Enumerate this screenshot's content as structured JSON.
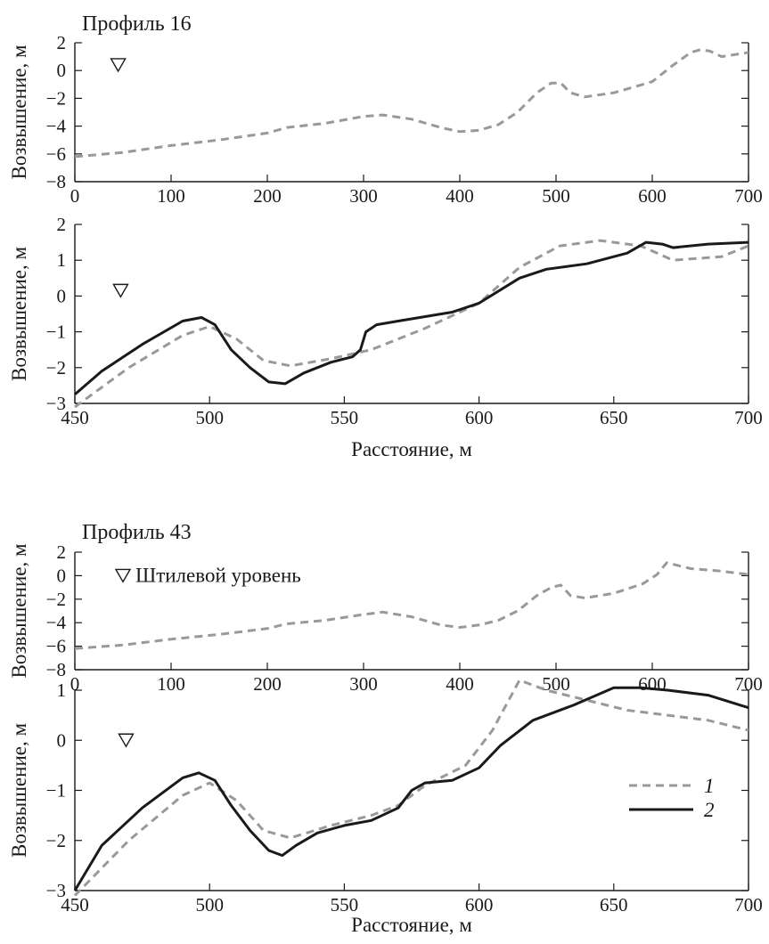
{
  "chart_data": [
    {
      "type": "line",
      "title": "Профиль 16",
      "xlabel": "",
      "ylabel": "Возвышение, м",
      "xlim": [
        0,
        700
      ],
      "ylim": [
        -8,
        2
      ],
      "xticks": [
        0,
        100,
        200,
        300,
        400,
        500,
        600,
        700
      ],
      "yticks": [
        -8,
        -6,
        -4,
        -2,
        0,
        2
      ],
      "annotation": {
        "text": "",
        "marker": "still-water-triangle",
        "x": 45,
        "y": 0.4
      },
      "series": [
        {
          "name": "",
          "style": "dashed",
          "color": "#999999",
          "points": [
            [
              0,
              -6.2
            ],
            [
              50,
              -5.9
            ],
            [
              100,
              -5.4
            ],
            [
              150,
              -5.0
            ],
            [
              200,
              -4.5
            ],
            [
              220,
              -4.1
            ],
            [
              260,
              -3.8
            ],
            [
              300,
              -3.3
            ],
            [
              320,
              -3.2
            ],
            [
              350,
              -3.5
            ],
            [
              380,
              -4.1
            ],
            [
              400,
              -4.4
            ],
            [
              420,
              -4.3
            ],
            [
              440,
              -3.9
            ],
            [
              460,
              -3.0
            ],
            [
              480,
              -1.6
            ],
            [
              495,
              -0.9
            ],
            [
              505,
              -0.9
            ],
            [
              515,
              -1.6
            ],
            [
              530,
              -1.9
            ],
            [
              560,
              -1.6
            ],
            [
              600,
              -0.8
            ],
            [
              620,
              0.3
            ],
            [
              640,
              1.3
            ],
            [
              650,
              1.5
            ],
            [
              660,
              1.4
            ],
            [
              672,
              1.0
            ],
            [
              700,
              1.3
            ]
          ]
        }
      ]
    },
    {
      "type": "line",
      "title": "",
      "xlabel": "Расстояние, м",
      "ylabel": "Возвышение, м",
      "xlim": [
        450,
        700
      ],
      "ylim": [
        -3,
        2
      ],
      "xticks": [
        450,
        500,
        550,
        600,
        650,
        700
      ],
      "yticks": [
        -3,
        -2,
        -1,
        0,
        1,
        2
      ],
      "annotation": {
        "text": "",
        "marker": "still-water-triangle",
        "x": 467,
        "y": 0.15
      },
      "series": [
        {
          "name": "1",
          "style": "dashed",
          "color": "#999999",
          "points": [
            [
              450,
              -3.1
            ],
            [
              470,
              -2.0
            ],
            [
              490,
              -1.1
            ],
            [
              500,
              -0.85
            ],
            [
              510,
              -1.2
            ],
            [
              520,
              -1.8
            ],
            [
              530,
              -1.95
            ],
            [
              545,
              -1.75
            ],
            [
              560,
              -1.5
            ],
            [
              580,
              -0.9
            ],
            [
              600,
              -0.2
            ],
            [
              615,
              0.8
            ],
            [
              630,
              1.4
            ],
            [
              645,
              1.55
            ],
            [
              660,
              1.4
            ],
            [
              672,
              1.0
            ],
            [
              690,
              1.1
            ],
            [
              700,
              1.4
            ]
          ]
        },
        {
          "name": "2",
          "style": "solid",
          "color": "#1a1a1a",
          "points": [
            [
              450,
              -2.75
            ],
            [
              460,
              -2.1
            ],
            [
              475,
              -1.35
            ],
            [
              490,
              -0.7
            ],
            [
              497,
              -0.6
            ],
            [
              502,
              -0.8
            ],
            [
              508,
              -1.5
            ],
            [
              515,
              -2.0
            ],
            [
              522,
              -2.4
            ],
            [
              528,
              -2.45
            ],
            [
              535,
              -2.15
            ],
            [
              545,
              -1.85
            ],
            [
              553,
              -1.7
            ],
            [
              556,
              -1.5
            ],
            [
              558,
              -1.0
            ],
            [
              562,
              -0.8
            ],
            [
              570,
              -0.7
            ],
            [
              590,
              -0.45
            ],
            [
              600,
              -0.2
            ],
            [
              615,
              0.5
            ],
            [
              625,
              0.75
            ],
            [
              640,
              0.9
            ],
            [
              655,
              1.2
            ],
            [
              662,
              1.5
            ],
            [
              668,
              1.45
            ],
            [
              672,
              1.35
            ],
            [
              685,
              1.45
            ],
            [
              700,
              1.5
            ]
          ]
        }
      ]
    },
    {
      "type": "line",
      "title": "Профиль 43",
      "xlabel": "",
      "ylabel": "Возвышение, м",
      "xlim": [
        0,
        700
      ],
      "ylim": [
        -8,
        2
      ],
      "xticks": [
        0,
        100,
        200,
        300,
        400,
        500,
        600,
        700
      ],
      "yticks": [
        -8,
        -6,
        -4,
        -2,
        0,
        2
      ],
      "annotation": {
        "text": "Штилевой уровень",
        "marker": "still-water-triangle",
        "x": 50,
        "y": 0
      },
      "series": [
        {
          "name": "",
          "style": "dashed",
          "color": "#999999",
          "points": [
            [
              0,
              -6.2
            ],
            [
              50,
              -5.9
            ],
            [
              100,
              -5.4
            ],
            [
              150,
              -5.0
            ],
            [
              200,
              -4.5
            ],
            [
              220,
              -4.1
            ],
            [
              260,
              -3.8
            ],
            [
              300,
              -3.3
            ],
            [
              320,
              -3.1
            ],
            [
              350,
              -3.5
            ],
            [
              380,
              -4.2
            ],
            [
              400,
              -4.4
            ],
            [
              420,
              -4.2
            ],
            [
              440,
              -3.8
            ],
            [
              460,
              -3.0
            ],
            [
              480,
              -1.7
            ],
            [
              495,
              -1.0
            ],
            [
              505,
              -0.8
            ],
            [
              515,
              -1.7
            ],
            [
              530,
              -1.9
            ],
            [
              560,
              -1.5
            ],
            [
              590,
              -0.7
            ],
            [
              605,
              0.1
            ],
            [
              615,
              1.1
            ],
            [
              640,
              0.6
            ],
            [
              670,
              0.4
            ],
            [
              700,
              0.1
            ]
          ]
        }
      ]
    },
    {
      "type": "line",
      "title": "",
      "xlabel": "Расстояние, м",
      "ylabel": "Возвышение, м",
      "xlim": [
        450,
        700
      ],
      "ylim": [
        -3,
        1
      ],
      "xticks": [
        450,
        500,
        550,
        600,
        650,
        700
      ],
      "yticks": [
        -3,
        -2,
        -1,
        0,
        1
      ],
      "annotation": {
        "text": "",
        "marker": "still-water-triangle",
        "x": 469,
        "y": 0
      },
      "legend": {
        "placement": "lower-right",
        "entries": [
          "1",
          "2"
        ]
      },
      "series": [
        {
          "name": "1",
          "style": "dashed",
          "color": "#999999",
          "points": [
            [
              450,
              -3.1
            ],
            [
              470,
              -2.0
            ],
            [
              490,
              -1.1
            ],
            [
              500,
              -0.85
            ],
            [
              510,
              -1.2
            ],
            [
              520,
              -1.8
            ],
            [
              530,
              -1.95
            ],
            [
              545,
              -1.7
            ],
            [
              560,
              -1.5
            ],
            [
              570,
              -1.3
            ],
            [
              580,
              -0.9
            ],
            [
              595,
              -0.5
            ],
            [
              605,
              0.2
            ],
            [
              615,
              1.2
            ],
            [
              625,
              1.0
            ],
            [
              640,
              0.8
            ],
            [
              655,
              0.6
            ],
            [
              670,
              0.5
            ],
            [
              685,
              0.4
            ],
            [
              700,
              0.2
            ]
          ]
        },
        {
          "name": "2",
          "style": "solid",
          "color": "#1a1a1a",
          "points": [
            [
              450,
              -3.0
            ],
            [
              460,
              -2.1
            ],
            [
              475,
              -1.35
            ],
            [
              490,
              -0.75
            ],
            [
              496,
              -0.65
            ],
            [
              502,
              -0.8
            ],
            [
              508,
              -1.3
            ],
            [
              515,
              -1.8
            ],
            [
              522,
              -2.2
            ],
            [
              527,
              -2.3
            ],
            [
              532,
              -2.1
            ],
            [
              540,
              -1.85
            ],
            [
              550,
              -1.7
            ],
            [
              560,
              -1.6
            ],
            [
              570,
              -1.35
            ],
            [
              575,
              -1.0
            ],
            [
              580,
              -0.85
            ],
            [
              590,
              -0.8
            ],
            [
              600,
              -0.55
            ],
            [
              608,
              -0.1
            ],
            [
              620,
              0.4
            ],
            [
              635,
              0.7
            ],
            [
              650,
              1.05
            ],
            [
              660,
              1.05
            ],
            [
              670,
              1.0
            ],
            [
              685,
              0.9
            ],
            [
              700,
              0.65
            ]
          ]
        }
      ]
    }
  ]
}
